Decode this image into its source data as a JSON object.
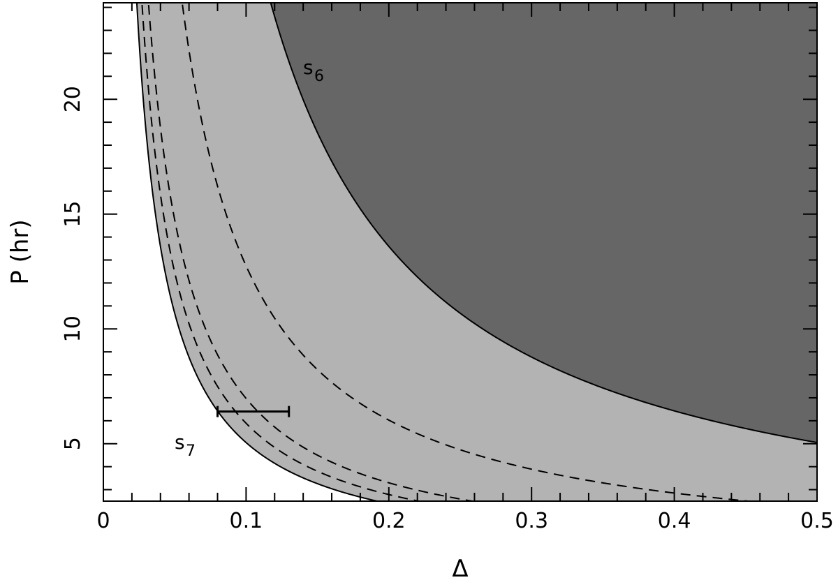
{
  "chart_data": {
    "type": "line",
    "xlabel": "Δ",
    "ylabel": "P (hr)",
    "xlim": [
      0,
      0.5
    ],
    "ylim": [
      2.5,
      24.2
    ],
    "x_ticks": [
      0,
      0.1,
      0.2,
      0.3,
      0.4,
      0.5
    ],
    "x_tick_labels": [
      "0",
      "0.1",
      "0.2",
      "0.3",
      "0.4",
      "0.5"
    ],
    "y_ticks": [
      5,
      10,
      15,
      20
    ],
    "y_tick_labels": [
      "5",
      "10",
      "15",
      "20"
    ],
    "grid": false,
    "colors": {
      "light_region": "#b3b3b3",
      "dark_region": "#666666",
      "line": "#000000"
    },
    "series": [
      {
        "label": "s",
        "subscript": "7",
        "style": "solid",
        "constant": 0.42,
        "exponent": 1.08
      },
      {
        "style": "dashed",
        "constant": 0.49,
        "exponent": 1.08
      },
      {
        "style": "dashed",
        "constant": 0.58,
        "exponent": 1.08
      },
      {
        "style": "dashed",
        "constant": 1.06,
        "exponent": 1.08
      },
      {
        "label": "s",
        "subscript": "6",
        "style": "solid",
        "constant": 2.39,
        "exponent": 1.08
      }
    ],
    "regions": [
      {
        "between": "s7 and s6",
        "fill": "light_region"
      },
      {
        "above": "s6",
        "fill": "dark_region"
      }
    ],
    "error_bar": {
      "x_min": 0.08,
      "x_max": 0.13,
      "y": 6.4
    }
  }
}
